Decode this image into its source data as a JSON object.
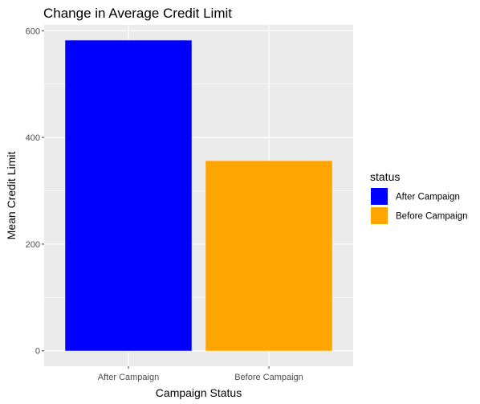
{
  "chart_data": {
    "type": "bar",
    "title": "Change in Average Credit Limit",
    "xlabel": "Campaign Status",
    "ylabel": "Mean Credit Limit",
    "categories": [
      "After Campaign",
      "Before Campaign"
    ],
    "values": [
      582,
      356
    ],
    "colors": [
      "#0000ff",
      "#ffa500"
    ],
    "ylim": [
      -29,
      611
    ],
    "yticks": [
      0,
      200,
      400,
      600
    ],
    "grid": true,
    "legend": {
      "title": "status",
      "position": "right",
      "entries": [
        {
          "label": "After Campaign",
          "color": "#0000ff"
        },
        {
          "label": "Before Campaign",
          "color": "#ffa500"
        }
      ]
    },
    "panel_background": "#ebebeb",
    "grid_color": "#ffffff"
  }
}
